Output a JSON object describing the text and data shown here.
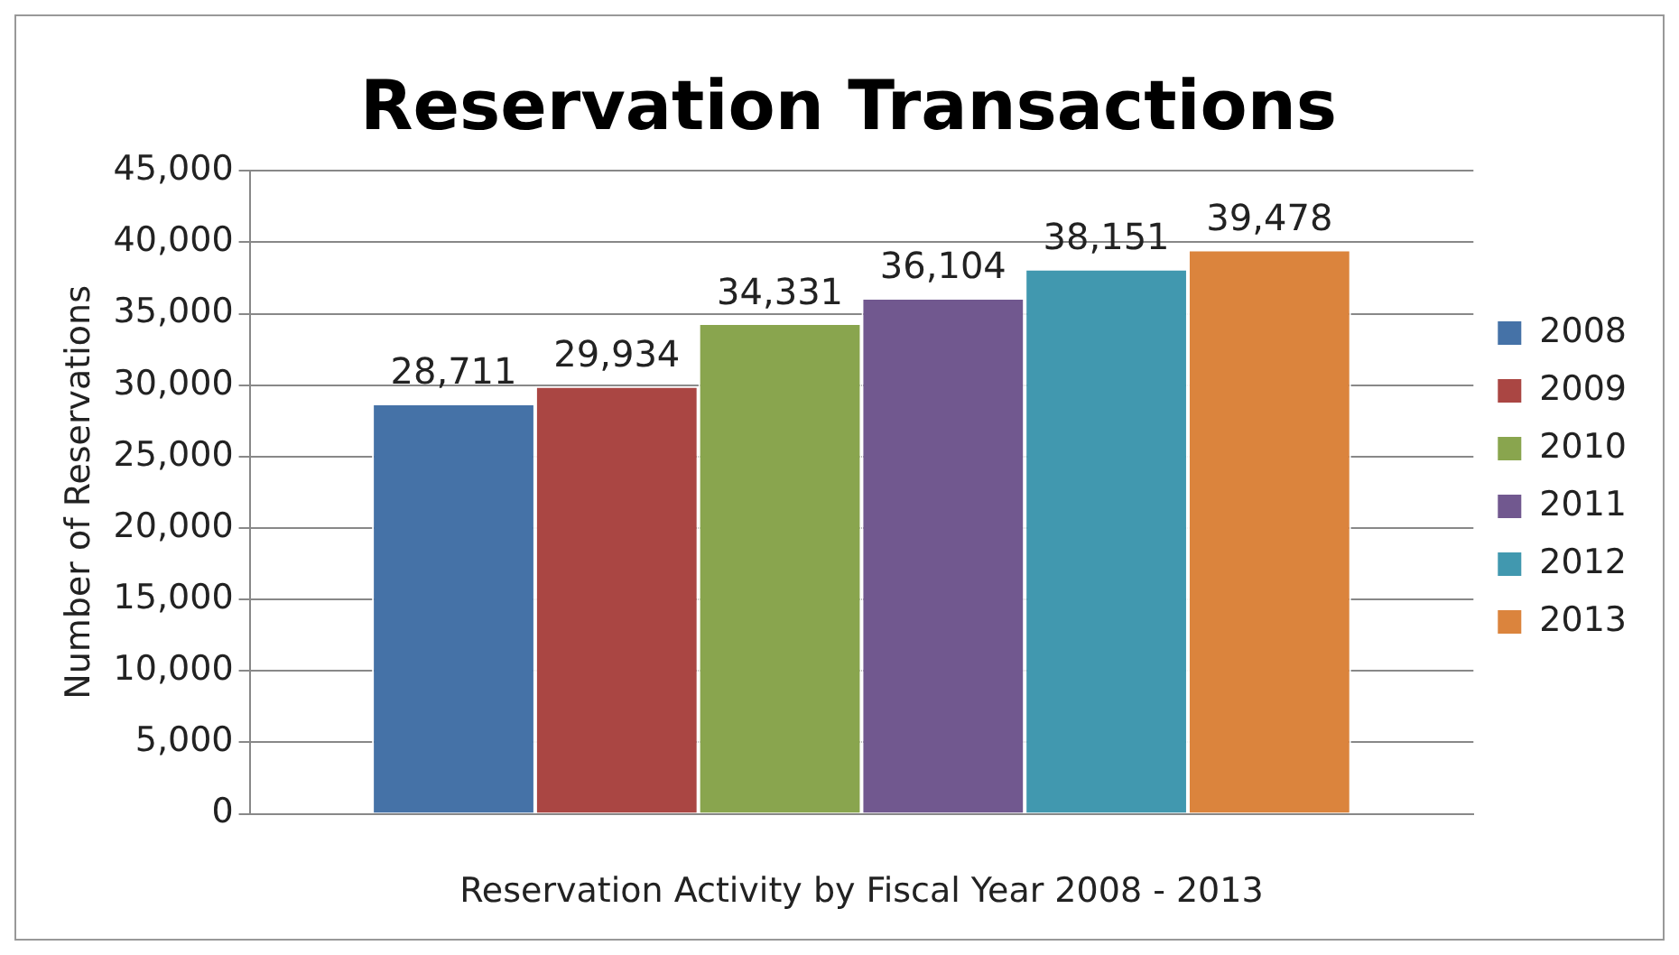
{
  "chart_data": {
    "type": "bar",
    "title": "Reservation Transactions",
    "xlabel": "Reservation Activity by Fiscal Year 2008 - 2013",
    "ylabel": "Number of Reservations",
    "categories": [
      null
    ],
    "series": [
      {
        "name": "2008",
        "color": "#4572a7",
        "values": [
          28711
        ],
        "value_labels": [
          "28,711"
        ]
      },
      {
        "name": "2009",
        "color": "#aa4643",
        "values": [
          29934
        ],
        "value_labels": [
          "29,934"
        ]
      },
      {
        "name": "2010",
        "color": "#89a54e",
        "values": [
          34331
        ],
        "value_labels": [
          "34,331"
        ]
      },
      {
        "name": "2011",
        "color": "#71588f",
        "values": [
          36104
        ],
        "value_labels": [
          "36,104"
        ]
      },
      {
        "name": "2012",
        "color": "#4198af",
        "values": [
          38151
        ],
        "value_labels": [
          "38,151"
        ]
      },
      {
        "name": "2013",
        "color": "#db843d",
        "values": [
          39478
        ],
        "value_labels": [
          "39,478"
        ]
      }
    ],
    "ylim": [
      0,
      45000
    ],
    "yticks": [
      0,
      {
        "value": 5000,
        "label": "5,000"
      },
      {
        "value": 10000,
        "label": "10,000"
      },
      {
        "value": 15000,
        "label": "15,000"
      },
      {
        "value": 20000,
        "label": "20,000"
      },
      {
        "value": 25000,
        "label": "25,000"
      },
      {
        "value": 30000,
        "label": "30,000"
      },
      {
        "value": 35000,
        "label": "35,000"
      },
      {
        "value": 40000,
        "label": "40,000"
      },
      {
        "value": 45000,
        "label": "45,000"
      }
    ],
    "grid": "y",
    "legend": "right"
  }
}
